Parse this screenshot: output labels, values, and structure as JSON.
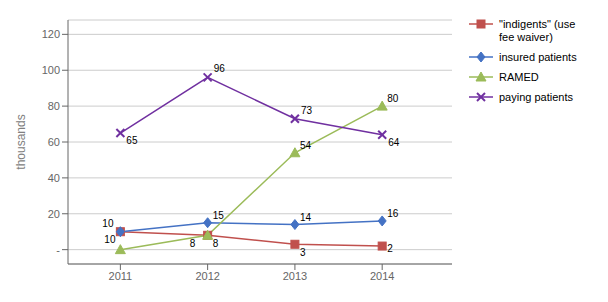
{
  "chart_data": {
    "type": "line",
    "x": [
      2011,
      2012,
      2013,
      2014
    ],
    "xlim": [
      2010.4,
      2014.8
    ],
    "xticks": [
      2011,
      2012,
      2013,
      2014
    ],
    "ylabel": "thousands",
    "ylim": [
      -8,
      128
    ],
    "yticks": [
      {
        "value": 0,
        "label": "-"
      },
      20,
      40,
      60,
      80,
      100,
      120
    ],
    "grid": true,
    "legend": "right",
    "data_labels": true,
    "series": [
      {
        "name": "\"indigents\" (use\nfee waiver)",
        "color": "#c0504d",
        "marker": "square",
        "values": [
          10,
          8,
          3,
          2
        ]
      },
      {
        "name": "insured patients",
        "color": "#4472c4",
        "marker": "diamond",
        "values": [
          10,
          15,
          14,
          16
        ]
      },
      {
        "name": "RAMED",
        "color": "#9bbb59",
        "marker": "triangle",
        "values": [
          0,
          8,
          54,
          80
        ],
        "value_labels": [
          null,
          "8",
          "54",
          "80"
        ]
      },
      {
        "name": "paying patients",
        "color": "#7030a0",
        "marker": "x",
        "values": [
          65,
          96,
          73,
          64
        ]
      }
    ]
  }
}
